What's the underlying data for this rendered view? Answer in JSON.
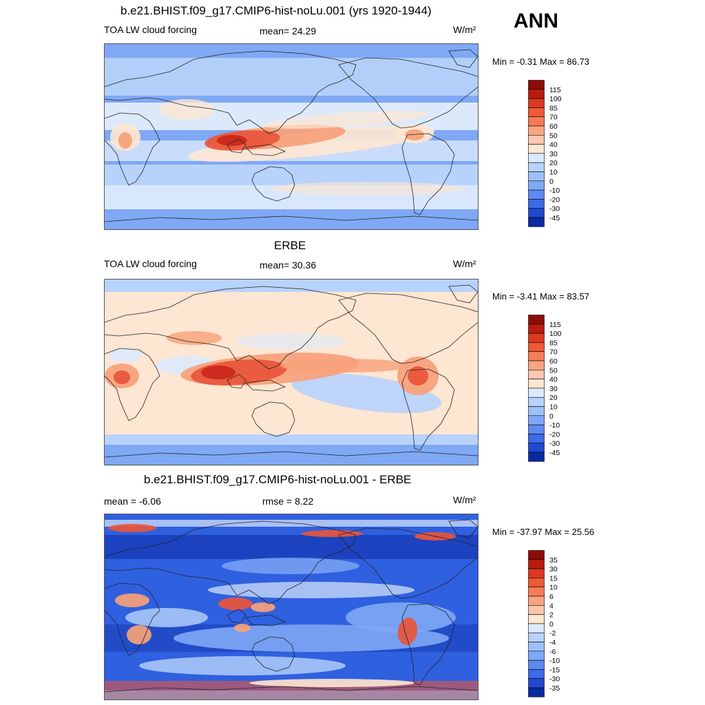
{
  "season": "ANN",
  "units": "W/m²",
  "palette": {
    "ocean_neg": "#7fa8f5",
    "ocean_mid": "#b8d3fb",
    "pale": "#dce9fb",
    "cream": "#fde6d2",
    "orange": "#f7a17a",
    "red": "#e8563a",
    "darkred": "#c8281a",
    "blue": "#2f60e0",
    "navy": "#1536b0",
    "coast": "#222222"
  },
  "panels": [
    {
      "title": "b.e21.BHIST.f09_g17.CMIP6-hist-noLu.001 (yrs 1920-1944)",
      "left_label": "TOA LW cloud forcing",
      "center_label": "mean=  24.29",
      "units": "W/m²",
      "minmax": "Min =  -0.31 Max =  86.73"
    },
    {
      "title": "ERBE",
      "left_label": "TOA LW cloud forcing",
      "center_label": "mean=  30.36",
      "units": "W/m²",
      "minmax": "Min =  -3.41 Max =  83.57"
    },
    {
      "title": "b.e21.BHIST.f09_g17.CMIP6-hist-noLu.001 - ERBE",
      "left_label": "mean =  -6.06",
      "center_label": "rmse =   8.22",
      "units": "W/m²",
      "minmax": "Min = -37.97 Max =  25.56"
    }
  ],
  "chart_data": [
    {
      "type": "heatmap",
      "title": "b.e21.BHIST.f09_g17.CMIP6-hist-noLu.001 (yrs 1920-1944)",
      "variable": "TOA LW cloud forcing",
      "mean": 24.29,
      "min": -0.31,
      "max": 86.73,
      "colorbar_levels": [
        115,
        100,
        85,
        70,
        60,
        50,
        40,
        30,
        20,
        10,
        0,
        -10,
        -20,
        -30,
        -45
      ],
      "colorbar_colors": [
        "#8b0d08",
        "#b81c10",
        "#d93a20",
        "#ec5a36",
        "#f57c58",
        "#f8a482",
        "#fbc8ae",
        "#fde6d2",
        "#dce9fb",
        "#b8d3fb",
        "#9dc0f8",
        "#7fa8f5",
        "#5d8af0",
        "#3e6ae6",
        "#2148cf",
        "#0a2a9e"
      ]
    },
    {
      "type": "heatmap",
      "title": "ERBE",
      "variable": "TOA LW cloud forcing",
      "mean": 30.36,
      "min": -3.41,
      "max": 83.57,
      "colorbar_levels": [
        115,
        100,
        85,
        70,
        60,
        50,
        40,
        30,
        20,
        10,
        0,
        -10,
        -20,
        -30,
        -45
      ],
      "colorbar_colors": [
        "#8b0d08",
        "#b81c10",
        "#d93a20",
        "#ec5a36",
        "#f57c58",
        "#f8a482",
        "#fbc8ae",
        "#fde6d2",
        "#dce9fb",
        "#b8d3fb",
        "#9dc0f8",
        "#7fa8f5",
        "#5d8af0",
        "#3e6ae6",
        "#2148cf",
        "#0a2a9e"
      ]
    },
    {
      "type": "heatmap",
      "title": "b.e21.BHIST.f09_g17.CMIP6-hist-noLu.001 - ERBE",
      "mean": -6.06,
      "rmse": 8.22,
      "min": -37.97,
      "max": 25.56,
      "colorbar_levels": [
        35,
        30,
        15,
        10,
        6,
        4,
        2,
        0,
        -2,
        -4,
        -6,
        -10,
        -15,
        -30,
        -35
      ],
      "colorbar_colors": [
        "#8b0d08",
        "#b81c10",
        "#d93a20",
        "#ec5a36",
        "#f57c58",
        "#f8a482",
        "#fbc8ae",
        "#fde6d2",
        "#dce9fb",
        "#b8d3fb",
        "#9dc0f8",
        "#7fa8f5",
        "#5d8af0",
        "#3e6ae6",
        "#2148cf",
        "#0a2a9e"
      ]
    }
  ]
}
